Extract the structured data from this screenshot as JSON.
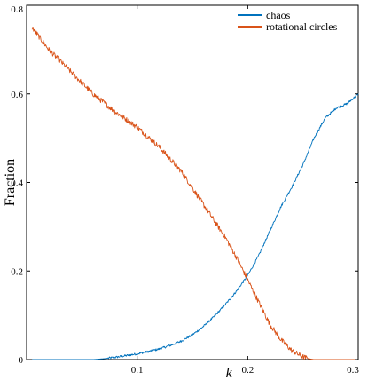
{
  "chart_data": {
    "type": "line",
    "title": "",
    "xlabel": "k",
    "ylabel": "Fraction",
    "xlim": [
      0,
      0.3
    ],
    "ylim": [
      0,
      0.8
    ],
    "xticks": [
      {
        "value": 0.1,
        "label": "0.1"
      },
      {
        "value": 0.2,
        "label": "0.2"
      },
      {
        "value": 0.3,
        "label": "0.3"
      }
    ],
    "yticks": [
      {
        "value": 0,
        "label": "0"
      },
      {
        "value": 0.2,
        "label": "0.2"
      },
      {
        "value": 0.4,
        "label": "0.4"
      },
      {
        "value": 0.6,
        "label": "0.6"
      },
      {
        "value": 0.8,
        "label": "0.8"
      }
    ],
    "grid": false,
    "legend_position": "top-right",
    "series": [
      {
        "name": "chaos",
        "color": "#0072bd",
        "x": [
          0.005,
          0.02,
          0.04,
          0.06,
          0.07,
          0.08,
          0.09,
          0.1,
          0.11,
          0.12,
          0.13,
          0.14,
          0.15,
          0.16,
          0.17,
          0.18,
          0.19,
          0.2,
          0.21,
          0.22,
          0.23,
          0.24,
          0.25,
          0.26,
          0.27,
          0.28,
          0.29,
          0.3
        ],
        "y": [
          0,
          0,
          0,
          0,
          0.002,
          0.005,
          0.009,
          0.013,
          0.018,
          0.024,
          0.032,
          0.042,
          0.056,
          0.075,
          0.098,
          0.125,
          0.155,
          0.19,
          0.235,
          0.29,
          0.345,
          0.39,
          0.44,
          0.5,
          0.545,
          0.568,
          0.578,
          0.6
        ]
      },
      {
        "name": "rotational circles",
        "color": "#d95319",
        "x": [
          0.005,
          0.02,
          0.04,
          0.06,
          0.08,
          0.1,
          0.12,
          0.14,
          0.16,
          0.18,
          0.19,
          0.2,
          0.21,
          0.22,
          0.23,
          0.24,
          0.25,
          0.255,
          0.26,
          0.265,
          0.28,
          0.3
        ],
        "y": [
          0.75,
          0.7,
          0.65,
          0.6,
          0.56,
          0.525,
          0.48,
          0.425,
          0.35,
          0.275,
          0.23,
          0.18,
          0.13,
          0.08,
          0.045,
          0.02,
          0.006,
          0.002,
          0.0,
          0,
          0,
          0
        ]
      }
    ]
  }
}
